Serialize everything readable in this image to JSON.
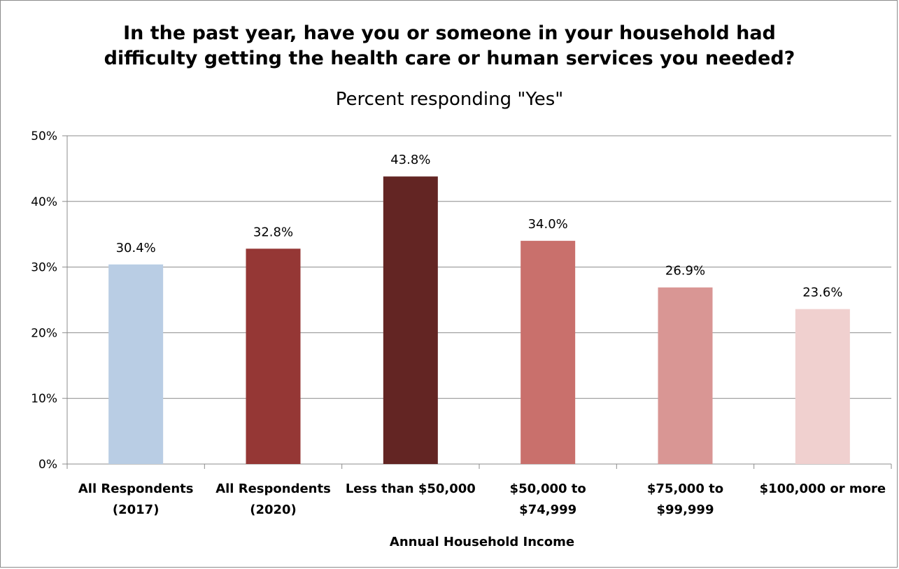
{
  "chart_data": {
    "type": "bar",
    "title_lines": [
      "In the past year, have you or someone in your household had",
      "difficulty getting the health care or human services you needed?"
    ],
    "subtitle": "Percent responding \"Yes\"",
    "xlabel": "Annual Household Income",
    "ylabel": "",
    "ylim": [
      0,
      50
    ],
    "yticks": [
      "0%",
      "10%",
      "20%",
      "30%",
      "40%",
      "50%"
    ],
    "grid": true,
    "categories": [
      [
        "All Respondents",
        "(2017)"
      ],
      [
        "All Respondents",
        "(2020)"
      ],
      [
        "Less than $50,000"
      ],
      [
        "$50,000 to",
        "$74,999"
      ],
      [
        "$75,000 to",
        "$99,999"
      ],
      [
        "$100,000 or more"
      ]
    ],
    "values": [
      30.4,
      32.8,
      43.8,
      34.0,
      26.9,
      23.6
    ],
    "value_labels": [
      "30.4%",
      "32.8%",
      "43.8%",
      "34.0%",
      "26.9%",
      "23.6%"
    ],
    "colors": [
      "#b9cde4",
      "#953735",
      "#632523",
      "#c9706c",
      "#d99694",
      "#f0d0cf"
    ]
  }
}
